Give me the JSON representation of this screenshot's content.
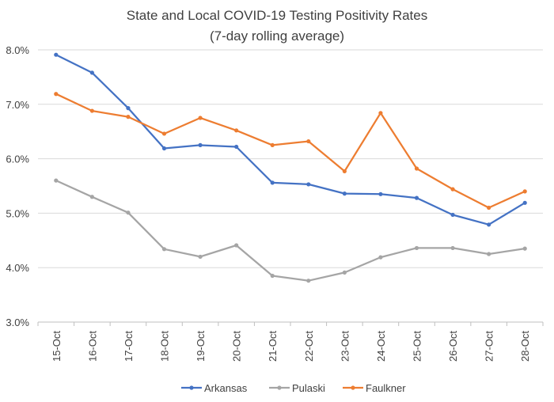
{
  "chart_data": {
    "type": "line",
    "title": "State and Local COVID-19 Testing Positivity Rates",
    "subtitle": "(7-day rolling average)",
    "xlabel": "",
    "ylabel": "",
    "categories": [
      "15-Oct",
      "16-Oct",
      "17-Oct",
      "18-Oct",
      "19-Oct",
      "20-Oct",
      "21-Oct",
      "22-Oct",
      "23-Oct",
      "24-Oct",
      "25-Oct",
      "26-Oct",
      "27-Oct",
      "28-Oct"
    ],
    "ylim": [
      3.0,
      8.0
    ],
    "yticks": [
      3.0,
      4.0,
      5.0,
      6.0,
      7.0,
      8.0
    ],
    "ytick_labels": [
      "3.0%",
      "4.0%",
      "5.0%",
      "6.0%",
      "7.0%",
      "8.0%"
    ],
    "grid": true,
    "legend_position": "bottom",
    "series": [
      {
        "name": "Arkansas",
        "color": "#4472C4",
        "values": [
          7.91,
          7.58,
          6.93,
          6.19,
          6.25,
          6.22,
          5.56,
          5.53,
          5.36,
          5.35,
          5.28,
          4.97,
          4.79,
          5.19
        ]
      },
      {
        "name": "Pulaski",
        "color": "#A5A5A5",
        "values": [
          5.6,
          5.3,
          5.01,
          4.34,
          4.2,
          4.41,
          3.85,
          3.76,
          3.91,
          4.19,
          4.36,
          4.36,
          4.25,
          4.35
        ]
      },
      {
        "name": "Faulkner",
        "color": "#ED7D31",
        "values": [
          7.19,
          6.88,
          6.77,
          6.46,
          6.75,
          6.52,
          6.25,
          6.32,
          5.77,
          6.84,
          5.82,
          5.44,
          5.1,
          5.4
        ]
      }
    ]
  }
}
